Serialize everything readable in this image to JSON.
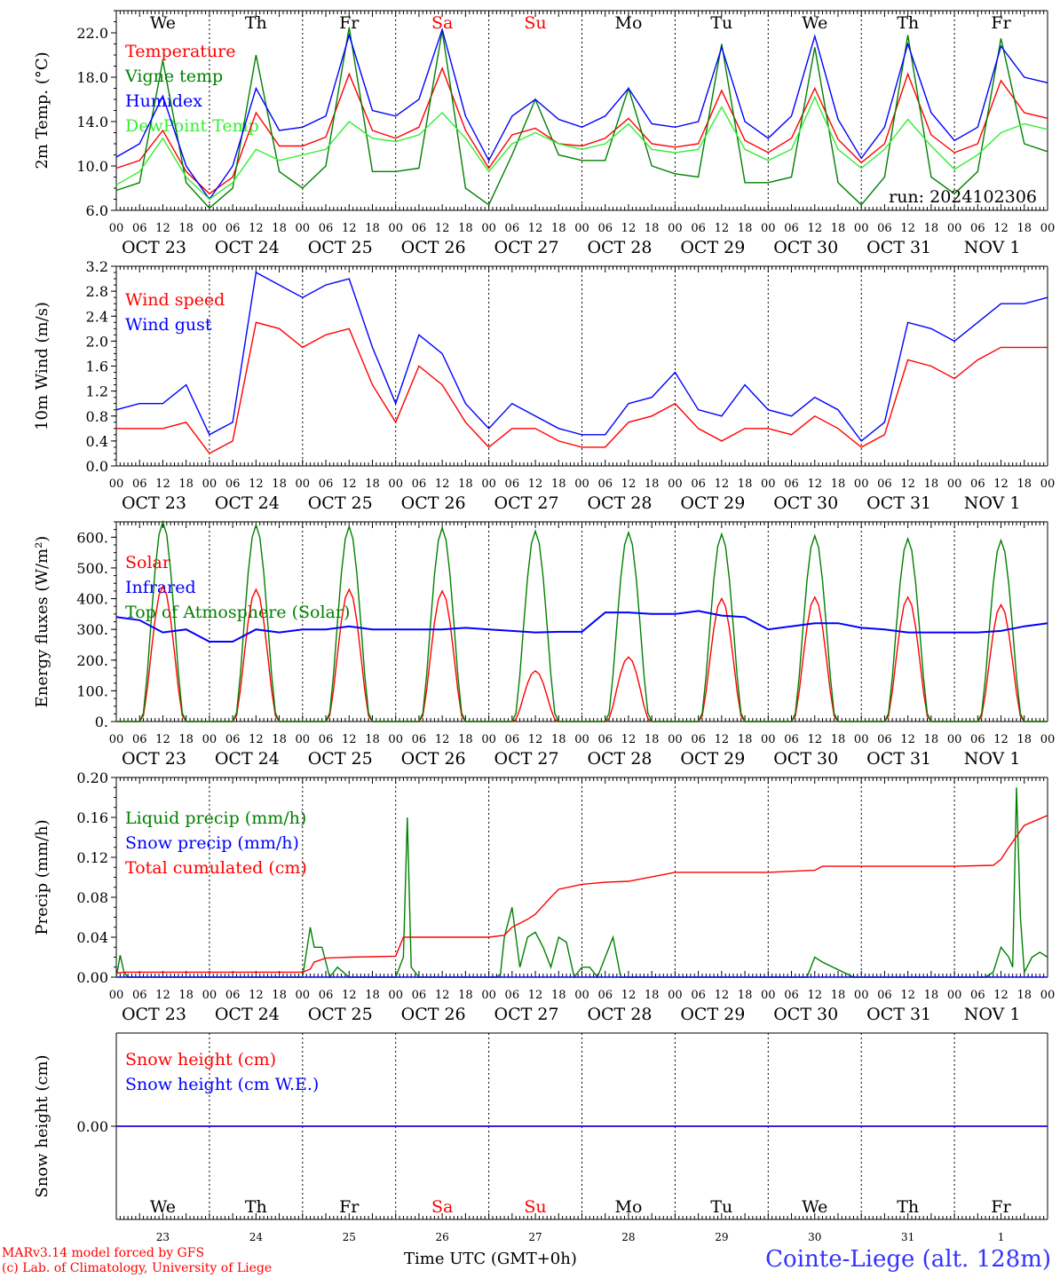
{
  "meteogram": {
    "run_label": "run: 2024102306",
    "days_top": [
      {
        "label": "We",
        "color": "#000000"
      },
      {
        "label": "Th",
        "color": "#000000"
      },
      {
        "label": "Fr",
        "color": "#000000"
      },
      {
        "label": "Sa",
        "color": "#ff0000"
      },
      {
        "label": "Su",
        "color": "#ff0000"
      },
      {
        "label": "Mo",
        "color": "#000000"
      },
      {
        "label": "Tu",
        "color": "#000000"
      },
      {
        "label": "We",
        "color": "#000000"
      },
      {
        "label": "Th",
        "color": "#000000"
      },
      {
        "label": "Fr",
        "color": "#000000"
      }
    ],
    "date_labels": [
      "OCT 23",
      "OCT 24",
      "OCT 25",
      "OCT 26",
      "OCT 27",
      "OCT 28",
      "OCT 29",
      "OCT 30",
      "OCT 31",
      "NOV  1"
    ],
    "hour_labels": [
      "00",
      "06",
      "12",
      "18"
    ],
    "hour_label_end": "00",
    "bottom_day_numbers": [
      "23",
      "24",
      "25",
      "26",
      "27",
      "28",
      "29",
      "30",
      "31",
      "1"
    ],
    "footer": {
      "model": "MARv3.14 model forced by GFS",
      "copyright": "(c) Lab. of Climatology, University of Liege",
      "time_label": "Time UTC (GMT+0h)",
      "station": "Cointe-Liege (alt. 128m)"
    }
  },
  "chart_data": [
    {
      "type": "line",
      "ylabel": "2m Temp. (°C)",
      "ylim": [
        6,
        24
      ],
      "yticks": [
        "6.0",
        "10.0",
        "14.0",
        "18.0",
        "22.0"
      ],
      "ytick_values": [
        6,
        10,
        14,
        18,
        22
      ],
      "legend": [
        {
          "name": "Temperature",
          "color": "#ff0000"
        },
        {
          "name": "Vigne temp",
          "color": "#008000"
        },
        {
          "name": "Humidex",
          "color": "#0000ff"
        },
        {
          "name": "DewPoint Temp",
          "color": "#33ee33"
        }
      ],
      "x_hours": [
        0,
        6,
        12,
        18,
        24,
        30,
        36,
        42,
        48,
        54,
        60,
        66,
        72,
        78,
        84,
        90,
        96,
        102,
        108,
        114,
        120,
        126,
        132,
        138,
        144,
        150,
        156,
        162,
        168,
        174,
        180,
        186,
        192,
        198,
        204,
        210,
        216,
        222,
        228,
        234,
        240
      ],
      "series": [
        {
          "name": "Temperature",
          "color": "#ff0000",
          "values": [
            9.8,
            10.5,
            13.2,
            9.5,
            7.5,
            9.0,
            14.8,
            11.8,
            11.8,
            12.6,
            18.3,
            13.2,
            12.5,
            13.5,
            18.8,
            13.2,
            9.8,
            12.8,
            13.4,
            12.0,
            11.8,
            12.5,
            14.3,
            12.0,
            11.7,
            12.0,
            16.8,
            12.3,
            11.2,
            12.5,
            17.0,
            12.4,
            10.3,
            12.0,
            18.3,
            12.8,
            11.2,
            12.0,
            17.7,
            14.8,
            14.3
          ]
        },
        {
          "name": "Vigne temp",
          "color": "#008000",
          "values": [
            7.8,
            8.5,
            19.5,
            8.5,
            6.2,
            8.0,
            20.0,
            9.5,
            8.0,
            10.0,
            22.5,
            9.5,
            9.5,
            9.8,
            22.2,
            8.0,
            6.5,
            11.0,
            16.0,
            11.0,
            10.5,
            10.5,
            17.0,
            10.0,
            9.3,
            9.0,
            21.0,
            8.5,
            8.5,
            9.0,
            20.7,
            8.5,
            6.5,
            9.0,
            21.8,
            9.0,
            7.5,
            9.5,
            21.5,
            12.0,
            11.3
          ]
        },
        {
          "name": "Humidex",
          "color": "#0000ff",
          "values": [
            10.8,
            12.0,
            16.3,
            10.0,
            7.0,
            10.0,
            17.0,
            13.2,
            13.5,
            14.5,
            21.8,
            15.0,
            14.5,
            16.0,
            22.3,
            14.5,
            10.5,
            14.5,
            16.0,
            14.2,
            13.5,
            14.5,
            17.0,
            13.8,
            13.5,
            14.0,
            20.7,
            14.0,
            12.5,
            14.5,
            21.7,
            14.2,
            10.7,
            13.5,
            21.0,
            14.8,
            12.3,
            13.5,
            20.8,
            18.0,
            17.5
          ]
        },
        {
          "name": "DewPoint Temp",
          "color": "#33ee33",
          "values": [
            8.3,
            9.5,
            12.5,
            9.0,
            7.0,
            8.5,
            11.5,
            10.5,
            11.0,
            11.5,
            14.0,
            12.5,
            12.2,
            12.8,
            14.8,
            12.5,
            9.5,
            12.0,
            13.0,
            12.0,
            11.5,
            12.0,
            13.8,
            11.5,
            11.2,
            11.5,
            15.3,
            11.5,
            10.5,
            11.5,
            16.2,
            11.5,
            9.8,
            11.5,
            14.2,
            11.8,
            9.7,
            11.0,
            13.0,
            13.8,
            13.3
          ]
        }
      ]
    },
    {
      "type": "line",
      "ylabel": "10m Wind (m/s)",
      "ylim": [
        0,
        3.2
      ],
      "yticks": [
        "0.0",
        "0.4",
        "0.8",
        "1.2",
        "1.6",
        "2.0",
        "2.4",
        "2.8",
        "3.2"
      ],
      "ytick_values": [
        0,
        0.4,
        0.8,
        1.2,
        1.6,
        2.0,
        2.4,
        2.8,
        3.2
      ],
      "legend": [
        {
          "name": "Wind speed",
          "color": "#ff0000"
        },
        {
          "name": "Wind gust",
          "color": "#0000ff"
        }
      ],
      "x_hours": [
        0,
        6,
        12,
        18,
        24,
        30,
        36,
        42,
        48,
        54,
        60,
        66,
        72,
        78,
        84,
        90,
        96,
        102,
        108,
        114,
        120,
        126,
        132,
        138,
        144,
        150,
        156,
        162,
        168,
        174,
        180,
        186,
        192,
        198,
        204,
        210,
        216,
        222,
        228,
        234,
        240
      ],
      "series": [
        {
          "name": "Wind speed",
          "color": "#ff0000",
          "values": [
            0.6,
            0.6,
            0.6,
            0.7,
            0.2,
            0.4,
            2.3,
            2.2,
            1.9,
            2.1,
            2.2,
            1.3,
            0.7,
            1.6,
            1.3,
            0.7,
            0.3,
            0.6,
            0.6,
            0.4,
            0.3,
            0.3,
            0.7,
            0.8,
            1.0,
            0.6,
            0.4,
            0.6,
            0.6,
            0.5,
            0.8,
            0.6,
            0.3,
            0.5,
            1.7,
            1.6,
            1.4,
            1.7,
            1.9,
            1.9,
            1.9
          ]
        },
        {
          "name": "Wind gust",
          "color": "#0000ff",
          "values": [
            0.9,
            1.0,
            1.0,
            1.3,
            0.5,
            0.7,
            3.1,
            2.9,
            2.7,
            2.9,
            3.0,
            1.9,
            1.0,
            2.1,
            1.8,
            1.0,
            0.6,
            1.0,
            0.8,
            0.6,
            0.5,
            0.5,
            1.0,
            1.1,
            1.5,
            0.9,
            0.8,
            1.3,
            0.9,
            0.8,
            1.1,
            0.9,
            0.4,
            0.7,
            2.3,
            2.2,
            2.0,
            2.3,
            2.6,
            2.6,
            2.7
          ]
        }
      ]
    },
    {
      "type": "line",
      "ylabel": "Energy fluxes (W/m²)",
      "ylim": [
        0,
        650
      ],
      "yticks": [
        "0.",
        "100.",
        "200.",
        "300.",
        "400.",
        "500.",
        "600."
      ],
      "ytick_values": [
        0,
        100,
        200,
        300,
        400,
        500,
        600
      ],
      "legend": [
        {
          "name": "Solar",
          "color": "#ff0000"
        },
        {
          "name": "Infrared",
          "color": "#0000ff"
        },
        {
          "name": "Top of Atmosphere (Solar)",
          "color": "#008000"
        }
      ],
      "series": [
        {
          "name": "Solar",
          "color": "#ff0000",
          "daily_peaks": [
            440,
            430,
            430,
            425,
            165,
            210,
            400,
            405,
            405,
            380
          ]
        },
        {
          "name": "Top of Atmosphere (Solar)",
          "color": "#008000",
          "daily_peaks": [
            650,
            640,
            635,
            630,
            620,
            615,
            610,
            605,
            595,
            590
          ]
        },
        {
          "name": "Infrared",
          "color": "#0000ff",
          "x_hours": [
            0,
            6,
            12,
            18,
            24,
            30,
            36,
            42,
            48,
            54,
            60,
            66,
            72,
            78,
            84,
            90,
            96,
            102,
            108,
            114,
            120,
            126,
            132,
            138,
            144,
            150,
            156,
            162,
            168,
            174,
            180,
            186,
            192,
            198,
            204,
            210,
            216,
            222,
            228,
            234,
            240
          ],
          "values": [
            340,
            330,
            290,
            300,
            260,
            260,
            300,
            290,
            300,
            300,
            310,
            300,
            300,
            300,
            300,
            305,
            300,
            295,
            290,
            292,
            292,
            355,
            355,
            350,
            350,
            360,
            345,
            340,
            300,
            310,
            320,
            320,
            305,
            300,
            290,
            290,
            290,
            290,
            295,
            310,
            320
          ]
        }
      ]
    },
    {
      "type": "line",
      "ylabel": "Precip (mm/h)",
      "ylim": [
        0,
        0.2
      ],
      "yticks": [
        "0.00",
        "0.04",
        "0.08",
        "0.12",
        "0.16",
        "0.20"
      ],
      "ytick_values": [
        0,
        0.04,
        0.08,
        0.12,
        0.16,
        0.2
      ],
      "legend": [
        {
          "name": "Liquid precip (mm/h)",
          "color": "#008000"
        },
        {
          "name": "Snow precip (mm/h)",
          "color": "#0000ff"
        },
        {
          "name": "Total cumulated (cm)",
          "color": "#ff0000"
        }
      ],
      "series": [
        {
          "name": "Liquid precip (mm/h)",
          "color": "#008000",
          "x_hours": [
            0,
            1,
            2,
            3,
            4,
            5,
            8,
            24,
            48,
            50,
            51,
            53,
            55,
            57,
            60,
            72,
            74,
            75,
            76,
            78,
            80,
            96,
            97,
            98,
            99,
            100,
            102,
            104,
            106,
            108,
            110,
            112,
            114,
            116,
            118,
            120,
            122,
            124,
            126,
            128,
            130,
            132,
            134,
            136,
            144,
            168,
            178,
            180,
            182,
            190,
            216,
            224,
            226,
            228,
            230,
            231,
            232,
            233,
            234,
            236,
            238,
            240
          ],
          "values": [
            0,
            0.022,
            0.005,
            0,
            0,
            0,
            0,
            0,
            0,
            0.05,
            0.03,
            0.03,
            0,
            0.01,
            0,
            0,
            0.02,
            0.16,
            0.01,
            0,
            0,
            0,
            0,
            0,
            0.003,
            0.04,
            0.07,
            0.01,
            0.04,
            0.045,
            0.03,
            0.01,
            0.04,
            0.035,
            0,
            0.01,
            0.01,
            0,
            0.02,
            0.04,
            0,
            0,
            0,
            0,
            0,
            0,
            0,
            0.02,
            0.015,
            0,
            0,
            0,
            0.005,
            0.03,
            0.02,
            0.01,
            0.19,
            0.06,
            0.005,
            0.02,
            0.025,
            0.02
          ]
        },
        {
          "name": "Snow precip (mm/h)",
          "color": "#0000ff",
          "x_hours": [
            0,
            240
          ],
          "values": [
            0,
            0
          ]
        },
        {
          "name": "Total cumulated (cm)",
          "color": "#ff0000",
          "x_hours": [
            0,
            2,
            24,
            48,
            50,
            51,
            54,
            60,
            72,
            74,
            75,
            76,
            96,
            100,
            102,
            106,
            108,
            112,
            114,
            120,
            126,
            132,
            144,
            168,
            180,
            182,
            216,
            226,
            228,
            230,
            234,
            240
          ],
          "values": [
            0.004,
            0.005,
            0.005,
            0.005,
            0.008,
            0.015,
            0.019,
            0.02,
            0.021,
            0.04,
            0.04,
            0.04,
            0.04,
            0.042,
            0.05,
            0.058,
            0.063,
            0.08,
            0.088,
            0.093,
            0.095,
            0.096,
            0.105,
            0.105,
            0.107,
            0.111,
            0.111,
            0.112,
            0.118,
            0.13,
            0.152,
            0.162
          ]
        }
      ]
    },
    {
      "type": "line",
      "ylabel": "Snow height (cm)",
      "ylim": [
        -0.1,
        0.1
      ],
      "yticks": [
        "0.00"
      ],
      "ytick_values": [
        0
      ],
      "legend": [
        {
          "name": "Snow height (cm)",
          "color": "#ff0000"
        },
        {
          "name": "Snow height (cm W.E.)",
          "color": "#0000ff"
        }
      ],
      "series": [
        {
          "name": "Snow height (cm)",
          "color": "#ff0000",
          "x_hours": [
            0,
            240
          ],
          "values": [
            0,
            0
          ]
        },
        {
          "name": "Snow height (cm W.E.)",
          "color": "#0000ff",
          "x_hours": [
            0,
            240
          ],
          "values": [
            0,
            0
          ]
        }
      ]
    }
  ]
}
